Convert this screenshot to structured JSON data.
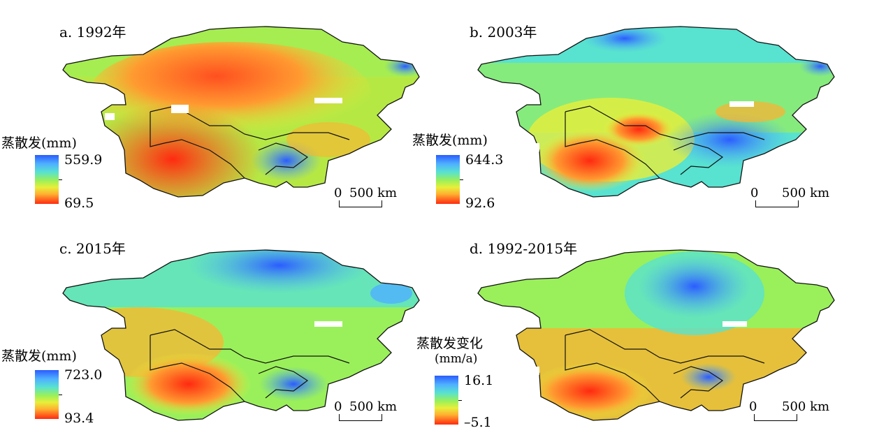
{
  "panels": [
    {
      "title": "a. 1992年",
      "legend_title": "蒸散发(mm)",
      "legend_subtitle": "",
      "max": "559.9",
      "min": "69.5",
      "scale_zero": "0",
      "scale_label": "500 km",
      "palette": "p1992"
    },
    {
      "title": "b. 2003年",
      "legend_title": "蒸散发(mm)",
      "legend_subtitle": "",
      "max": "644.3",
      "min": "92.6",
      "scale_zero": "0",
      "scale_label": "500 km",
      "palette": "p2003"
    },
    {
      "title": "c. 2015年",
      "legend_title": "蒸散发(mm)",
      "legend_subtitle": "",
      "max": "723.0",
      "min": "93.4",
      "scale_zero": "0",
      "scale_label": "500 km",
      "palette": "p2015"
    },
    {
      "title": "d. 1992-2015年",
      "legend_title": "蒸散发变化",
      "legend_subtitle": "(mm/a)",
      "max": "16.1",
      "min": "–5.1",
      "scale_zero": "0",
      "scale_label": "500 km",
      "palette": "pchange"
    }
  ],
  "colors": {
    "high": "#2b5cff",
    "mid": "#9af05a",
    "low": "#ff2a10",
    "border": "#111111"
  }
}
